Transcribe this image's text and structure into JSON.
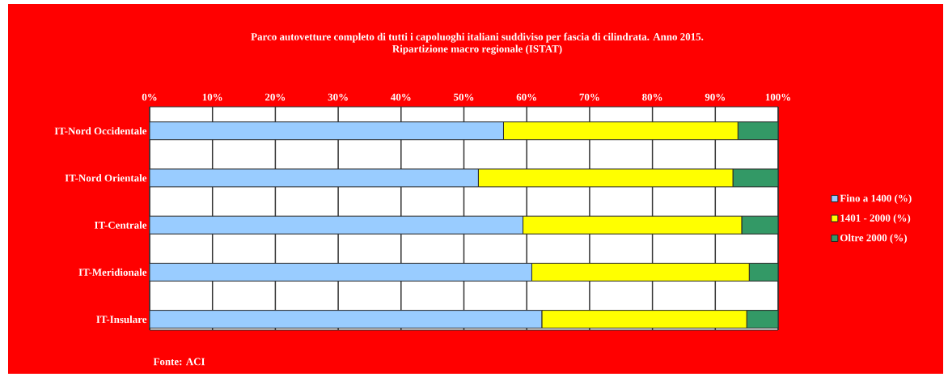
{
  "chart_data": {
    "type": "bar",
    "orientation": "horizontal",
    "stacked": true,
    "title": "Parco autovetture completo di tutti i capoluoghi italiani suddiviso per fascia di cilindrata. Anno 2015.",
    "subtitle": "Ripartizione macro regionale (ISTAT)",
    "categories": [
      "IT-Nord Occidentale",
      "IT-Nord Orientale",
      "IT-Centrale",
      "IT-Meridionale",
      "IT-Insulare"
    ],
    "series": [
      {
        "name": "Fino a 1400 (%)",
        "color": "#99ccff",
        "values": [
          56.3,
          52.3,
          59.4,
          60.8,
          62.4
        ]
      },
      {
        "name": "1401 - 2000 (%)",
        "color": "#ffff00",
        "values": [
          37.3,
          40.5,
          34.8,
          34.6,
          32.6
        ]
      },
      {
        "name": "Oltre 2000 (%)",
        "color": "#339966",
        "values": [
          6.4,
          7.2,
          5.8,
          4.6,
          5.0
        ]
      }
    ],
    "xlim": [
      0,
      100
    ],
    "xticks": [
      {
        "value": 0,
        "label": "0%"
      },
      {
        "value": 10,
        "label": "10%"
      },
      {
        "value": 20,
        "label": "20%"
      },
      {
        "value": 30,
        "label": "30%"
      },
      {
        "value": 40,
        "label": "40%"
      },
      {
        "value": 50,
        "label": "50%"
      },
      {
        "value": 60,
        "label": "60%"
      },
      {
        "value": 70,
        "label": "70%"
      },
      {
        "value": 80,
        "label": "80%"
      },
      {
        "value": 90,
        "label": "90%"
      },
      {
        "value": 100,
        "label": "100%"
      }
    ],
    "grid": "x",
    "legend": "right",
    "annotations": [
      "Fonte: ACI"
    ]
  }
}
